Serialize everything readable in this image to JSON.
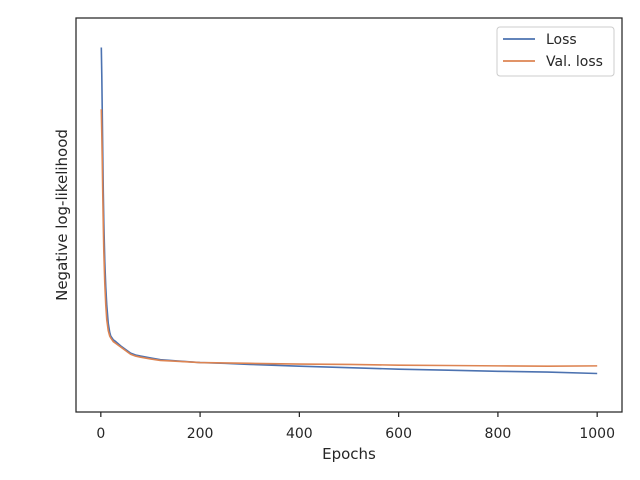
{
  "chart_data": {
    "type": "line",
    "title": "",
    "xlabel": "Epochs",
    "ylabel": "Negative log-likelihood",
    "xlim": [
      -50,
      1050
    ],
    "ylim": [
      0.0,
      1.0
    ],
    "x_ticks": [
      0,
      200,
      400,
      600,
      800,
      1000
    ],
    "x_tick_labels": [
      "0",
      "200",
      "400",
      "600",
      "800",
      "1000"
    ],
    "y_ticks_visible": false,
    "grid": false,
    "legend_position": "top-right",
    "series": [
      {
        "name": "Loss",
        "color": "#4c72b0",
        "x": [
          1,
          2,
          3,
          4,
          5,
          6,
          8,
          10,
          12,
          15,
          18,
          20,
          25,
          30,
          40,
          50,
          60,
          70,
          80,
          100,
          120,
          150,
          200,
          250,
          300,
          400,
          500,
          600,
          700,
          800,
          900,
          1000
        ],
        "y": [
          0.96,
          0.88,
          0.77,
          0.66,
          0.56,
          0.48,
          0.37,
          0.3,
          0.25,
          0.2,
          0.175,
          0.165,
          0.155,
          0.15,
          0.138,
          0.128,
          0.118,
          0.113,
          0.11,
          0.105,
          0.1,
          0.097,
          0.092,
          0.09,
          0.087,
          0.082,
          0.078,
          0.074,
          0.071,
          0.068,
          0.066,
          0.062
        ]
      },
      {
        "name": "Val. loss",
        "color": "#dd8452",
        "x": [
          1,
          2,
          3,
          4,
          5,
          6,
          8,
          10,
          12,
          15,
          18,
          20,
          25,
          30,
          40,
          50,
          60,
          70,
          80,
          100,
          120,
          150,
          200,
          250,
          300,
          400,
          500,
          600,
          700,
          800,
          900,
          1000
        ],
        "y": [
          0.79,
          0.72,
          0.64,
          0.55,
          0.47,
          0.4,
          0.31,
          0.25,
          0.21,
          0.18,
          0.165,
          0.16,
          0.15,
          0.145,
          0.135,
          0.125,
          0.115,
          0.11,
          0.107,
          0.102,
          0.098,
          0.096,
          0.092,
          0.091,
          0.09,
          0.088,
          0.087,
          0.085,
          0.084,
          0.083,
          0.082,
          0.083
        ]
      }
    ]
  }
}
